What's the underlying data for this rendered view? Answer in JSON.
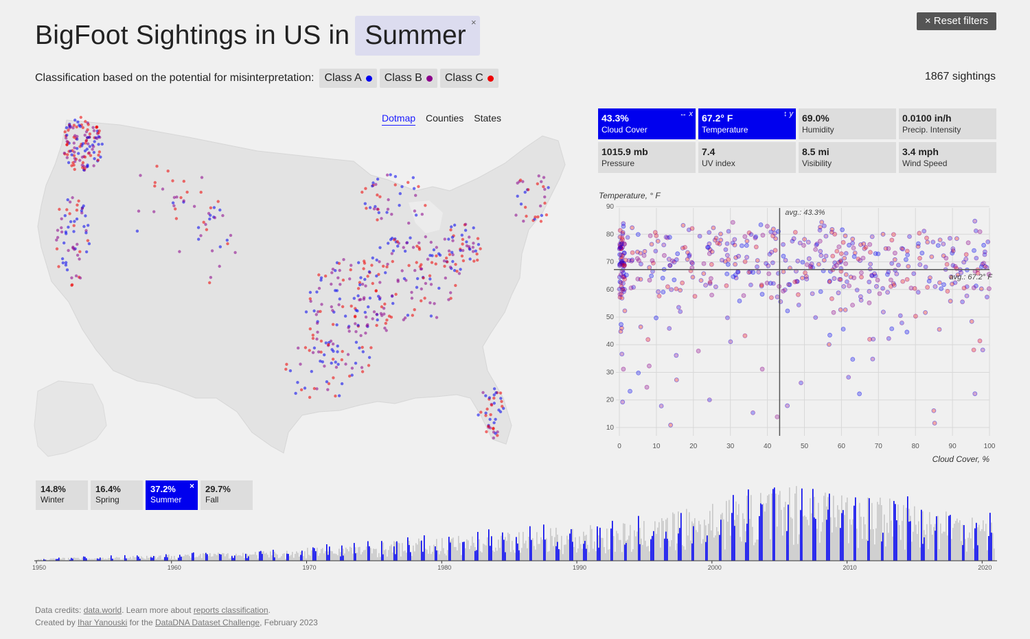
{
  "header": {
    "title": "BigFoot Sightings in US in",
    "season": "Summer",
    "season_close": "×",
    "reset_label": "× Reset filters"
  },
  "classification": {
    "label": "Classification based on the potential for misinterpretation:",
    "classes": [
      {
        "label": "Class A",
        "color": "#0000ee"
      },
      {
        "label": "Class B",
        "color": "#8b008b"
      },
      {
        "label": "Class C",
        "color": "#ee0000"
      }
    ]
  },
  "count_label": "1867 sightings",
  "map_tabs": [
    "Dotmap",
    "Counties",
    "States"
  ],
  "metrics": [
    {
      "value": "43.3%",
      "name": "Cloud Cover",
      "selected": true,
      "axis": "↔ x"
    },
    {
      "value": "67.2° F",
      "name": "Temperature",
      "selected": true,
      "axis": "↕ y"
    },
    {
      "value": "69.0%",
      "name": "Humidity",
      "selected": false
    },
    {
      "value": "0.0100 in/h",
      "name": "Precip. Intensity",
      "selected": false
    },
    {
      "value": "1015.9 mb",
      "name": "Pressure",
      "selected": false
    },
    {
      "value": "7.4",
      "name": "UV index",
      "selected": false
    },
    {
      "value": "8.5 mi",
      "name": "Visibility",
      "selected": false
    },
    {
      "value": "3.4 mph",
      "name": "Wind Speed",
      "selected": false
    }
  ],
  "chart_data": {
    "type": "scatter",
    "ylabel": "Temperature, ° F",
    "xlabel": "Cloud Cover, %",
    "xlim": [
      0,
      100
    ],
    "ylim": [
      7,
      92
    ],
    "x_ticks": [
      0,
      10,
      20,
      30,
      40,
      50,
      60,
      70,
      80,
      90,
      100
    ],
    "y_ticks": [
      10,
      20,
      30,
      40,
      50,
      60,
      70,
      80,
      90
    ],
    "avg_x": 43.3,
    "avg_y": 67.2,
    "avg_x_label": "avg.: 43.3%",
    "avg_y_label": "avg.: 67.2° F",
    "grid": true
  },
  "seasons": [
    {
      "value": "14.8%",
      "name": "Winter",
      "selected": false
    },
    {
      "value": "16.4%",
      "name": "Spring",
      "selected": false
    },
    {
      "value": "37.2%",
      "name": "Summer",
      "selected": true
    },
    {
      "value": "29.7%",
      "name": "Fall",
      "selected": false
    }
  ],
  "timeline": {
    "start_year": 1950,
    "end_year": 2021,
    "ticks": [
      "1950",
      "1960",
      "1970",
      "1980",
      "1990",
      "2000",
      "2010",
      "2020"
    ]
  },
  "credits": {
    "l1_prefix": "Data credits: ",
    "l1_link1": "data.world",
    "l1_mid": ". Learn more about ",
    "l1_link2": "reports classification",
    "l1_end": ".",
    "l2_prefix": "Created by ",
    "l2_link1": "Ihar Yanouski",
    "l2_mid": " for the ",
    "l2_link2": "DataDNA Dataset Challenge",
    "l2_end": ", February 2023"
  }
}
